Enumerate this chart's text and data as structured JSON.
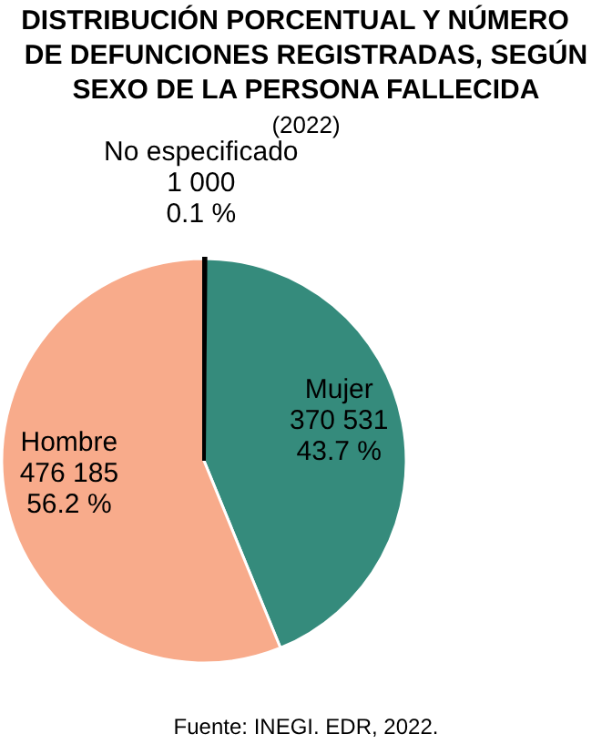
{
  "chart_data": {
    "type": "pie",
    "title": "DISTRIBUCIÓN PORCENTUAL Y NÚMERO DE DEFUNCIONES REGISTRADAS, SEGÚN SEXO DE LA PERSONA FALLECIDA",
    "subtitle": "(2022)",
    "categories": [
      "No especificado",
      "Mujer",
      "Hombre"
    ],
    "values": [
      1000,
      370531,
      476185
    ],
    "value_labels": [
      "1 000\n0.1 %",
      "370 531\n43.7 %",
      "476 185\n56.2 %"
    ],
    "colors": [
      "#000000",
      "#358b7c",
      "#f8ab8b"
    ],
    "annotations": [
      "Fuente: INEGI. EDR, 2022."
    ]
  }
}
